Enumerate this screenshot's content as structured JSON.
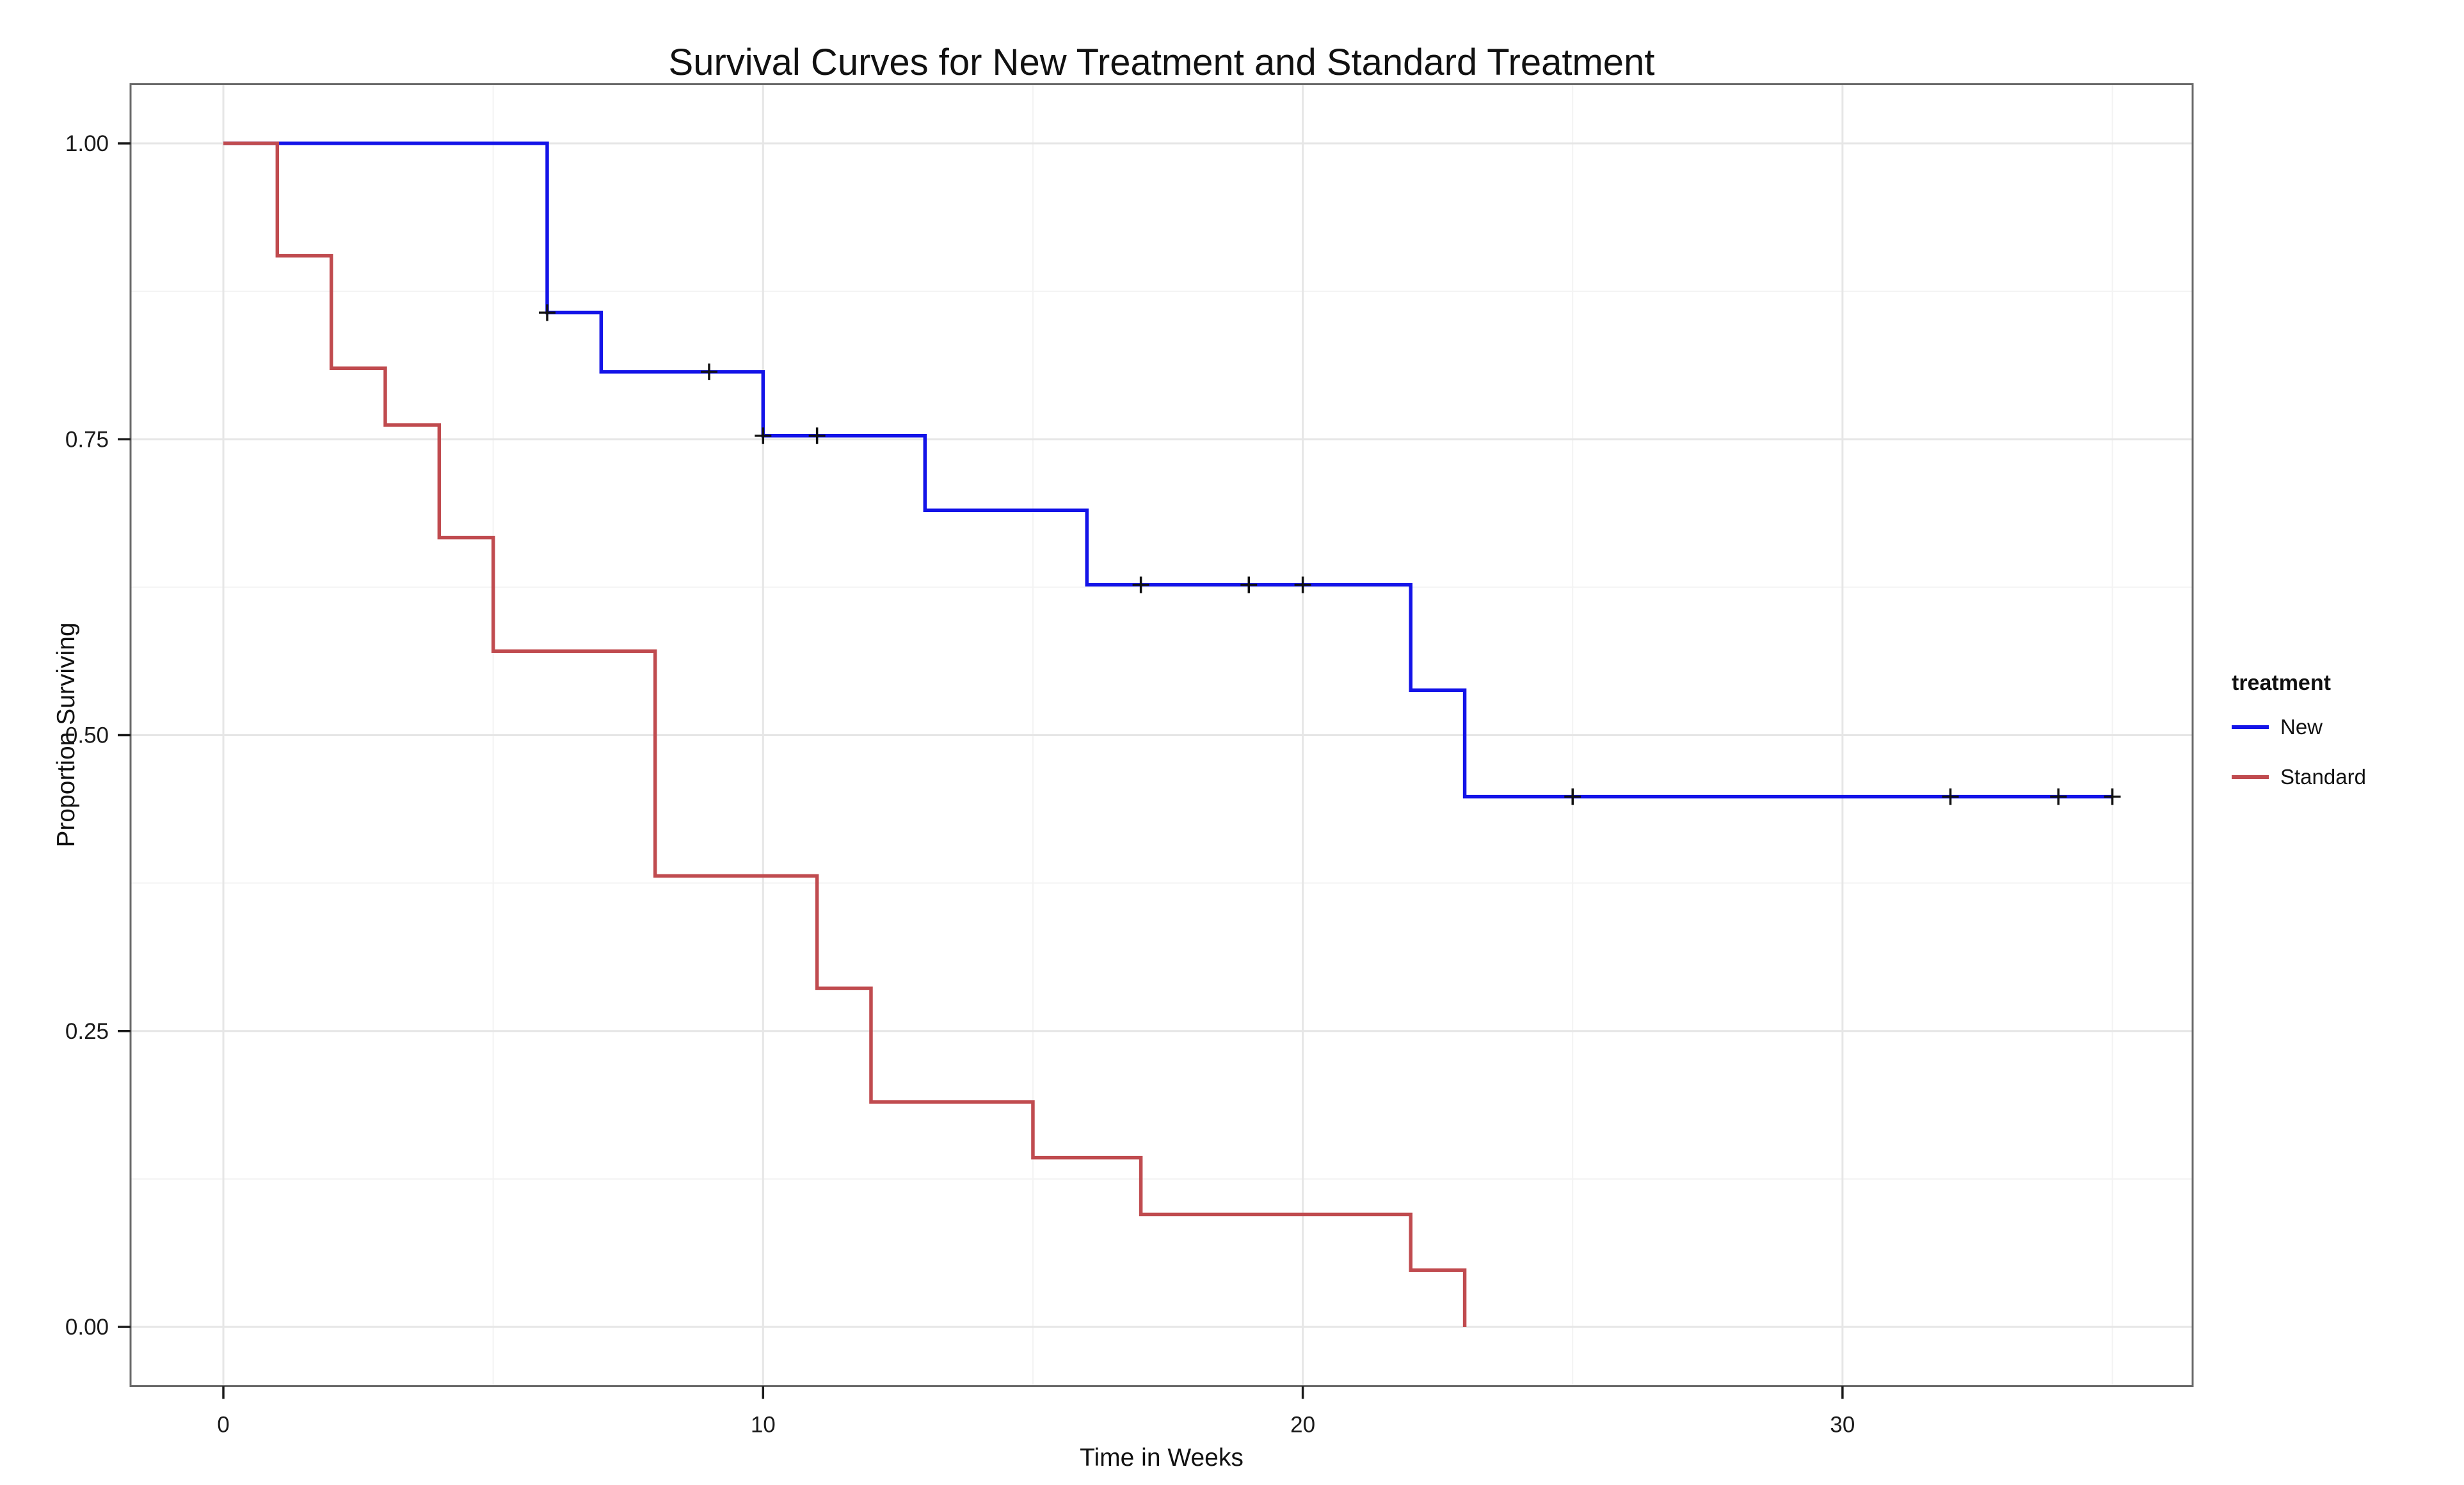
{
  "title": "Survival Curves for New Treatment and Standard Treatment",
  "axes": {
    "x": {
      "label": "Time in Weeks",
      "major_ticks": [
        {
          "v": 0,
          "label": "0"
        },
        {
          "v": 10,
          "label": "10"
        },
        {
          "v": 20,
          "label": "20"
        },
        {
          "v": 30,
          "label": "30"
        }
      ],
      "minor_gridlines": [
        5,
        15,
        25,
        35
      ]
    },
    "y": {
      "label": "Proportion Surviving",
      "major_ticks": [
        {
          "v": 1.0,
          "label": "1.00"
        },
        {
          "v": 0.75,
          "label": "0.75"
        },
        {
          "v": 0.5,
          "label": "0.50"
        },
        {
          "v": 0.25,
          "label": "0.25"
        },
        {
          "v": 0.0,
          "label": "0.00"
        }
      ],
      "minor_gridlines": [
        0.875,
        0.625,
        0.375,
        0.125
      ]
    }
  },
  "legend": {
    "title": "treatment",
    "entries": [
      {
        "label": "New",
        "color": "#1414E8"
      },
      {
        "label": "Standard",
        "color": "#C04B4F"
      }
    ]
  },
  "colors": {
    "background": "#FFFFFF",
    "panel_border": "#6A6A6A",
    "grid_major": "#E6E6E6",
    "grid_minor": "#F3F3F3",
    "tick": "#1A1A1A",
    "censor_mark": "#111111",
    "new_curve": "#1414E8",
    "standard_curve": "#C04B4F"
  },
  "chart_data": {
    "type": "line",
    "subtype": "kaplan-meier-step",
    "title": "Survival Curves for New Treatment and Standard Treatment",
    "xlabel": "Time in Weeks",
    "ylabel": "Proportion Surviving",
    "xlim": [
      -1.75,
      36.5
    ],
    "ylim": [
      -0.05,
      1.05
    ],
    "grid": true,
    "legend_position": "right",
    "series": [
      {
        "name": "New",
        "color": "#1414E8",
        "start": [
          0,
          1.0
        ],
        "end_time": 35,
        "km_steps": [
          [
            6,
            0.857
          ],
          [
            7,
            0.807
          ],
          [
            10,
            0.753
          ],
          [
            13,
            0.69
          ],
          [
            16,
            0.627
          ],
          [
            22,
            0.538
          ],
          [
            23,
            0.448
          ]
        ],
        "censored": [
          [
            6,
            0.857
          ],
          [
            9,
            0.807
          ],
          [
            10,
            0.753
          ],
          [
            11,
            0.753
          ],
          [
            17,
            0.627
          ],
          [
            19,
            0.627
          ],
          [
            20,
            0.627
          ],
          [
            25,
            0.448
          ],
          [
            32,
            0.448
          ],
          [
            34,
            0.448
          ],
          [
            35,
            0.448
          ]
        ]
      },
      {
        "name": "Standard",
        "color": "#C04B4F",
        "start": [
          0,
          1.0
        ],
        "end_time": 23,
        "km_steps": [
          [
            1,
            0.905
          ],
          [
            2,
            0.81
          ],
          [
            3,
            0.762
          ],
          [
            4,
            0.667
          ],
          [
            5,
            0.571
          ],
          [
            8,
            0.381
          ],
          [
            11,
            0.286
          ],
          [
            12,
            0.19
          ],
          [
            15,
            0.143
          ],
          [
            17,
            0.095
          ],
          [
            22,
            0.048
          ],
          [
            23,
            0.0
          ]
        ],
        "censored": []
      }
    ]
  }
}
